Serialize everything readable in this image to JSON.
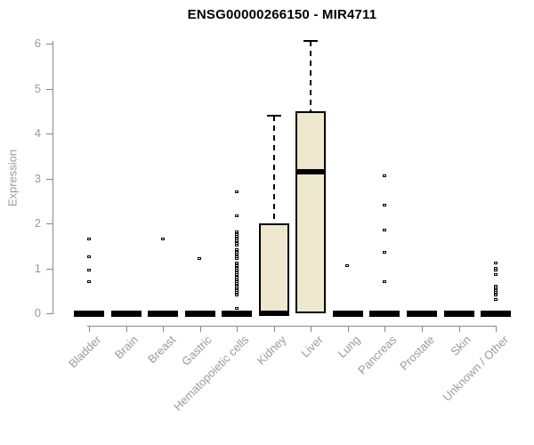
{
  "chart_data": {
    "type": "boxplot",
    "title": "ENSG00000266150 - MIR4711",
    "ylabel": "Expression",
    "xlabel": "",
    "ylim": [
      0,
      6
    ],
    "yticks": [
      0,
      1,
      2,
      3,
      4,
      5,
      6
    ],
    "grid": false,
    "legend": "none",
    "categories": [
      "Bladder",
      "Brain",
      "Breast",
      "Gastric",
      "Hematopoietic cells",
      "Kidney",
      "Liver",
      "Lung",
      "Pancreas",
      "Prostate",
      "Skin",
      "Unknown / Other"
    ],
    "series": [
      {
        "category": "Bladder",
        "q1": 0,
        "median": 0,
        "q3": 0,
        "whisker_low": 0,
        "whisker_high": 0,
        "outliers": [
          1.65,
          1.25,
          0.95,
          0.7
        ]
      },
      {
        "category": "Brain",
        "q1": 0,
        "median": 0,
        "q3": 0,
        "whisker_low": 0,
        "whisker_high": 0,
        "outliers": []
      },
      {
        "category": "Breast",
        "q1": 0,
        "median": 0,
        "q3": 0,
        "whisker_low": 0,
        "whisker_high": 0,
        "outliers": [
          1.65
        ]
      },
      {
        "category": "Gastric",
        "q1": 0,
        "median": 0,
        "q3": 0,
        "whisker_low": 0,
        "whisker_high": 0,
        "outliers": [
          1.2
        ]
      },
      {
        "category": "Hematopoietic cells",
        "q1": 0,
        "median": 0,
        "q3": 0,
        "whisker_low": 0,
        "whisker_high": 0,
        "outliers": [
          2.7,
          2.15,
          1.8,
          1.75,
          1.7,
          1.65,
          1.6,
          1.55,
          1.5,
          1.4,
          1.35,
          1.3,
          1.25,
          1.2,
          1.1,
          1.05,
          1.0,
          0.95,
          0.9,
          0.85,
          0.8,
          0.75,
          0.7,
          0.65,
          0.6,
          0.55,
          0.5,
          0.45,
          0.4,
          0.1
        ]
      },
      {
        "category": "Kidney",
        "q1": 0,
        "median": 0,
        "q3": 2.0,
        "whisker_low": 0,
        "whisker_high": 4.4,
        "outliers": []
      },
      {
        "category": "Liver",
        "q1": 0,
        "median": 3.15,
        "q3": 4.5,
        "whisker_low": 0,
        "whisker_high": 6.05,
        "outliers": []
      },
      {
        "category": "Lung",
        "q1": 0,
        "median": 0,
        "q3": 0,
        "whisker_low": 0,
        "whisker_high": 0,
        "outliers": [
          1.05
        ]
      },
      {
        "category": "Pancreas",
        "q1": 0,
        "median": 0,
        "q3": 0,
        "whisker_low": 0,
        "whisker_high": 0,
        "outliers": [
          3.05,
          2.4,
          1.85,
          1.35,
          0.7
        ]
      },
      {
        "category": "Prostate",
        "q1": 0,
        "median": 0,
        "q3": 0,
        "whisker_low": 0,
        "whisker_high": 0,
        "outliers": []
      },
      {
        "category": "Skin",
        "q1": 0,
        "median": 0,
        "q3": 0,
        "whisker_low": 0,
        "whisker_high": 0,
        "outliers": []
      },
      {
        "category": "Unknown / Other",
        "q1": 0,
        "median": 0,
        "q3": 0,
        "whisker_low": 0,
        "whisker_high": 0,
        "outliers": [
          1.1,
          1.0,
          0.95,
          0.85,
          0.6,
          0.55,
          0.5,
          0.45,
          0.4,
          0.3
        ]
      }
    ],
    "colors": {
      "box_fill": "#ede8ce",
      "box_border": "#000000",
      "median": "#000000",
      "whisker": "#000000",
      "outlier": "#000000",
      "axis": "#878787",
      "tick_label": "#9a9a9a",
      "title": "#000000"
    }
  }
}
